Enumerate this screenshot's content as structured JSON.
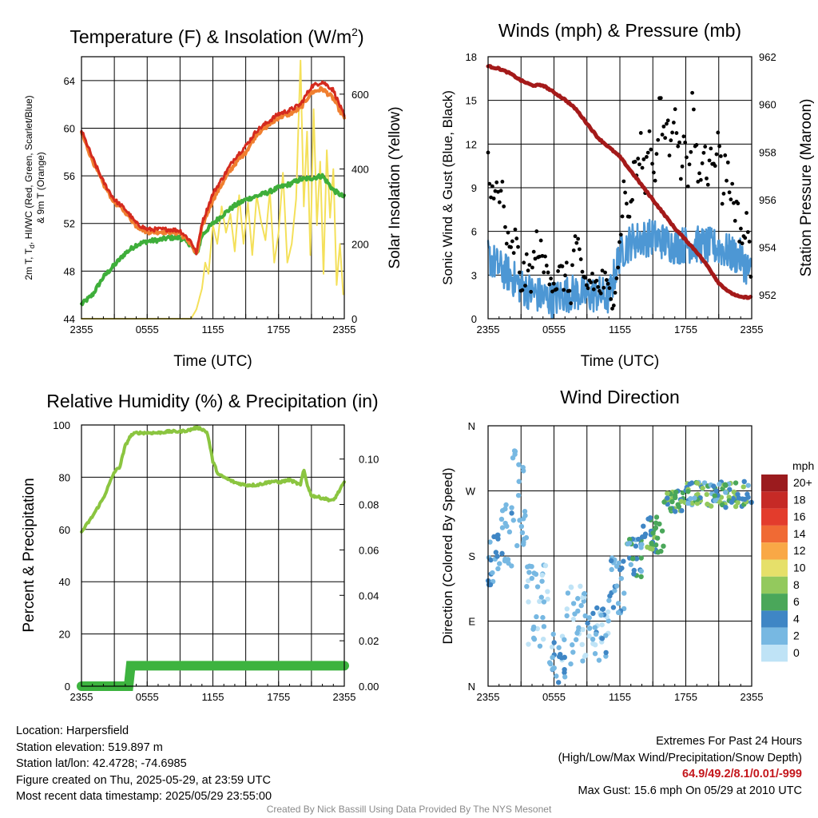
{
  "colors": {
    "red": "#d42a1e",
    "orange": "#f07f30",
    "green": "#3eae3a",
    "yellow": "#f4e05a",
    "maroon": "#a41a1a",
    "wind_blue": "#4d97d4",
    "rh_green": "#8bc540",
    "precip_green": "#3db33f"
  },
  "chart_data": [
    {
      "id": "temp",
      "type": "line",
      "title": "Temperature (F) & Insolation (W/m",
      "title_sup": "2",
      "title_end": ")",
      "xlabel": "Time (UTC)",
      "ylabel_line1": "2m T, T",
      "ylabel_sub": "d",
      "ylabel_line1_end": ", HI/WC (Red, Green, Scarlet/Blue)",
      "ylabel_line2": "& 9m T (Orange)",
      "ylabel_right": "Solar Insolation (Yellow)",
      "x_ticks": [
        "2355",
        "0555",
        "1155",
        "1755",
        "2355"
      ],
      "ylim": [
        44,
        66
      ],
      "y_ticks": [
        "44",
        "48",
        "52",
        "56",
        "60",
        "64"
      ],
      "y2lim": [
        0,
        700
      ],
      "y2_ticks": [
        "0",
        "200",
        "400",
        "600"
      ],
      "x_hours": [
        0,
        1,
        2,
        3,
        4,
        5,
        6,
        7,
        8,
        9,
        10,
        10.5,
        11,
        12,
        13,
        14,
        15,
        16,
        17,
        18,
        19,
        20,
        21,
        22,
        23,
        24
      ],
      "series": [
        {
          "color": "red",
          "values": [
            59.8,
            57.5,
            55.5,
            54,
            53.2,
            52,
            51.5,
            51.5,
            51.5,
            51.4,
            50.5,
            49.5,
            52,
            54.5,
            56,
            57.5,
            58.5,
            59.8,
            60.5,
            61.2,
            61.5,
            62,
            63.5,
            63.9,
            63.2,
            61
          ]
        },
        {
          "color": "orange",
          "values": [
            59.6,
            57.3,
            55.3,
            53.8,
            53,
            51.8,
            51.3,
            51.3,
            51.3,
            51.2,
            50.3,
            49.3,
            51.7,
            54,
            55.6,
            57,
            58,
            59.5,
            60.2,
            60.9,
            61.2,
            61.7,
            63,
            63.3,
            62.5,
            60.8
          ]
        },
        {
          "color": "green",
          "values": [
            45.2,
            46,
            47.5,
            48.5,
            49.5,
            50.2,
            50.5,
            50.6,
            50.8,
            50.8,
            50.2,
            49.3,
            51,
            52,
            52.8,
            53.5,
            54,
            54.3,
            54.6,
            55,
            55.3,
            55.7,
            55.8,
            56,
            54.8,
            54.2
          ]
        }
      ],
      "solar": {
        "x": [
          0,
          1,
          2,
          3,
          4,
          5,
          6,
          7,
          8,
          9,
          10,
          10.5,
          11,
          11.3,
          11.6,
          12,
          12.4,
          12.8,
          13.2,
          13.6,
          14,
          14.4,
          14.8,
          15.2,
          15.6,
          16,
          16.4,
          16.8,
          17.2,
          17.6,
          18,
          18.4,
          18.8,
          19.2,
          19.6,
          20,
          20.3,
          20.6,
          20.9,
          21.2,
          21.5,
          21.8,
          22.1,
          22.4,
          22.7,
          23,
          23.3,
          23.6,
          24
        ],
        "values": [
          0,
          0,
          0,
          0,
          0,
          0,
          0,
          0,
          0,
          0,
          0,
          25,
          80,
          150,
          120,
          250,
          200,
          300,
          230,
          280,
          180,
          330,
          200,
          310,
          170,
          330,
          260,
          210,
          340,
          150,
          230,
          390,
          150,
          200,
          320,
          690,
          300,
          500,
          170,
          560,
          250,
          420,
          120,
          450,
          270,
          400,
          90,
          200,
          20
        ]
      }
    },
    {
      "id": "wind",
      "type": "scatter",
      "title": "Winds (mph) & Pressure (mb)",
      "xlabel": "Time (UTC)",
      "ylabel": "Sonic Wind & Gust (Blue, Black)",
      "ylabel_right": "Station Pressure (Maroon)",
      "x_ticks": [
        "2355",
        "0555",
        "1155",
        "1755",
        "2355"
      ],
      "ylim": [
        0,
        18
      ],
      "y_ticks": [
        "0",
        "3",
        "6",
        "9",
        "12",
        "15",
        "18"
      ],
      "y2lim": [
        951,
        962
      ],
      "y2_ticks": [
        "952",
        "954",
        "956",
        "958",
        "960",
        "962"
      ],
      "sustained": {
        "x": [
          0,
          1,
          2,
          3,
          4,
          5,
          6,
          7,
          8,
          9,
          10,
          11,
          12,
          13,
          14,
          15,
          16,
          17,
          18,
          19,
          20,
          21,
          22,
          23,
          24
        ],
        "values": [
          4.3,
          3.5,
          3,
          2.2,
          1.8,
          1.5,
          1.3,
          1.7,
          1.8,
          1.6,
          1.7,
          1.5,
          4.5,
          5.3,
          5.5,
          5.6,
          5.3,
          5,
          5.1,
          5.1,
          5,
          4.9,
          4.5,
          4.2,
          3
        ]
      },
      "gust": {
        "x": [
          0,
          0.3,
          0.6,
          1,
          1.3,
          1.6,
          2,
          2.5,
          3,
          3.5,
          4,
          4.5,
          5,
          5.5,
          6,
          6.5,
          7,
          7.5,
          8,
          8.5,
          9,
          9.5,
          10,
          10.5,
          11,
          11.5,
          12,
          12.3,
          12.6,
          13,
          13.3,
          13.6,
          14,
          14.3,
          14.6,
          15,
          15.3,
          15.6,
          16,
          16.3,
          16.6,
          17,
          17.3,
          17.6,
          18,
          18.3,
          18.6,
          19,
          19.3,
          19.6,
          20,
          20.3,
          20.6,
          21,
          21.3,
          21.6,
          22,
          22.3,
          22.6,
          23,
          23.3,
          23.6,
          24
        ],
        "values": [
          10.8,
          8,
          10,
          7.5,
          9,
          6,
          4,
          5.5,
          2.5,
          3.2,
          3,
          5.5,
          3.5,
          3.8,
          2.5,
          2.8,
          3,
          1.8,
          6,
          2.5,
          2.2,
          2.8,
          2,
          2.5,
          1.5,
          2.2,
          5,
          9,
          8,
          7,
          11,
          10,
          12,
          9,
          13,
          11,
          10,
          15,
          12,
          14,
          11,
          15.6,
          12,
          10,
          13,
          9,
          14.5,
          11,
          9,
          12,
          10,
          13,
          9,
          14,
          8,
          11,
          9,
          8.5,
          7.5,
          6,
          5.5,
          6.5,
          3.5
        ]
      },
      "pressure": {
        "x": [
          0,
          1,
          2,
          3,
          4,
          5,
          6,
          7,
          8,
          9,
          10,
          11,
          12,
          13,
          14,
          15,
          16,
          17,
          18,
          19,
          20,
          21,
          22,
          23,
          24
        ],
        "values": [
          961.6,
          961.5,
          961.3,
          961,
          960.8,
          960.8,
          960.5,
          960.2,
          959.8,
          959.2,
          958.6,
          958.2,
          957.8,
          957.2,
          956.6,
          956,
          955.4,
          954.8,
          954.3,
          953.8,
          953.2,
          952.5,
          952.1,
          951.9,
          951.9
        ]
      }
    },
    {
      "id": "rh",
      "type": "line",
      "title": "Relative Humidity (%) & Precipitation (in)",
      "xlabel": "",
      "ylabel": "Percent & Precipitation",
      "x_ticks": [
        "2355",
        "0555",
        "1155",
        "1755",
        "2355"
      ],
      "ylim": [
        0,
        100
      ],
      "y_ticks": [
        "0",
        "20",
        "40",
        "60",
        "80",
        "100"
      ],
      "y2lim": [
        0,
        0.115
      ],
      "y2_ticks": [
        "0.00",
        "0.02",
        "0.04",
        "0.06",
        "0.08",
        "0.10"
      ],
      "rh": {
        "x": [
          0,
          0.5,
          1,
          2,
          3,
          3.5,
          4,
          4.5,
          5,
          6,
          7,
          8,
          9,
          9.8,
          10.5,
          11,
          11.5,
          12,
          12.5,
          13,
          14,
          15,
          16,
          17,
          17.5,
          18,
          19,
          20,
          20.3,
          20.7,
          21,
          22,
          23,
          24
        ],
        "values": [
          59,
          62,
          65,
          72,
          82,
          84,
          92,
          96,
          97,
          97,
          97,
          97.5,
          97.5,
          98,
          99,
          98.5,
          97,
          86,
          81,
          80,
          78,
          77,
          77,
          78,
          78.5,
          78,
          79,
          77,
          83,
          76,
          73,
          72,
          71,
          78
        ]
      },
      "precip": {
        "x": [
          0,
          3,
          4.3,
          4.5,
          5,
          24
        ],
        "values": [
          0,
          0,
          0,
          0.009,
          0.009,
          0.009
        ]
      }
    },
    {
      "id": "direction",
      "type": "scatter",
      "title": "Wind Direction",
      "ylabel": "Direction (Colored By Speed)",
      "x_ticks": [
        "2355",
        "0555",
        "1155",
        "1755",
        "2355"
      ],
      "y_ticks": [
        "N",
        "E",
        "S",
        "W",
        "N"
      ],
      "ylim": [
        0,
        360
      ],
      "legend_title": "mph",
      "legend_labels": [
        "20+",
        "18",
        "16",
        "14",
        "12",
        "10",
        "8",
        "6",
        "4",
        "2",
        "0"
      ],
      "legend_colors": [
        "#9b1b1e",
        "#c62a26",
        "#e33c2c",
        "#f06a34",
        "#f9a846",
        "#e6e06a",
        "#93c95d",
        "#4aa75a",
        "#3f86c5",
        "#77b8e2",
        "#bfe3f6"
      ],
      "segments": [
        {
          "x0": 0,
          "x1": 1.2,
          "base": 175,
          "spread": 35,
          "speeds": [
            4,
            3,
            2
          ]
        },
        {
          "x0": 1.2,
          "x1": 2.2,
          "base": 210,
          "spread": 45,
          "speeds": [
            2,
            4,
            1
          ]
        },
        {
          "x0": 2.2,
          "x1": 3.5,
          "base": 260,
          "spread": 70,
          "speeds": [
            1,
            2
          ]
        },
        {
          "x0": 3.5,
          "x1": 5.5,
          "base": 110,
          "spread": 60,
          "speeds": [
            1,
            0,
            2
          ]
        },
        {
          "x0": 5.5,
          "x1": 7,
          "base": 40,
          "spread": 35,
          "speeds": [
            1,
            0,
            2,
            4
          ]
        },
        {
          "x0": 7,
          "x1": 9,
          "base": 80,
          "spread": 60,
          "speeds": [
            1,
            0,
            2
          ]
        },
        {
          "x0": 9,
          "x1": 11,
          "base": 70,
          "spread": 40,
          "speeds": [
            1,
            0,
            2,
            4
          ]
        },
        {
          "x0": 11,
          "x1": 12.5,
          "base": 140,
          "spread": 40,
          "speeds": [
            2,
            1,
            4
          ]
        },
        {
          "x0": 12.5,
          "x1": 14,
          "base": 175,
          "spread": 30,
          "speeds": [
            4,
            6,
            2
          ]
        },
        {
          "x0": 14,
          "x1": 16,
          "base": 210,
          "spread": 25,
          "speeds": [
            4,
            6,
            8
          ]
        },
        {
          "x0": 16,
          "x1": 18,
          "base": 255,
          "spread": 15,
          "speeds": [
            4,
            6,
            8
          ]
        },
        {
          "x0": 18,
          "x1": 24,
          "base": 265,
          "spread": 18,
          "speeds": [
            4,
            6,
            2,
            8
          ]
        }
      ]
    }
  ],
  "info": {
    "location": "Location: Harpersfield",
    "elevation": "Station elevation: 519.897 m",
    "latlon": "Station lat/lon: 42.4728; -74.6985",
    "created": "Figure created on Thu, 2025-05-29, at 23:59 UTC",
    "recent": "Most recent data timestamp: 2025/05/29 23:55:00",
    "extremes_title": "Extremes For Past 24 Hours",
    "extremes_sub": "(High/Low/Max Wind/Precipitation/Snow Depth)",
    "extremes_values": "64.9/49.2/8.1/0.01/-999",
    "max_gust": "Max Gust: 15.6 mph On 05/29 at 2010 UTC",
    "credit": "Created By Nick Bassill Using Data Provided By The NYS Mesonet"
  }
}
